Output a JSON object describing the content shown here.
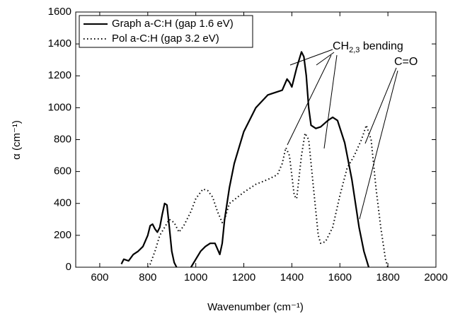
{
  "chart_data": {
    "type": "line",
    "xlabel": "Wavenumber (cm⁻¹)",
    "ylabel": "α (cm⁻¹)",
    "xlim": [
      500,
      2000
    ],
    "xticks": [
      600,
      800,
      1000,
      1200,
      1400,
      1600,
      1800,
      2000
    ],
    "ylim": [
      0,
      1600
    ],
    "yticks": [
      0,
      200,
      400,
      600,
      800,
      1000,
      1200,
      1400,
      1600
    ],
    "legend": "upper left",
    "annotations": [
      {
        "text": [
          "CH",
          "2,3",
          " bending"
        ]
      },
      {
        "text": [
          "C=O"
        ]
      }
    ],
    "series": [
      {
        "name": "Graph a-C:H (gap 1.6 eV)",
        "color": "#000000",
        "style": "solid",
        "x": [
          690,
          700,
          720,
          740,
          760,
          780,
          800,
          810,
          820,
          830,
          840,
          850,
          860,
          870,
          880,
          890,
          900,
          910,
          920,
          950,
          980,
          1000,
          1020,
          1040,
          1060,
          1080,
          1100,
          1110,
          1120,
          1140,
          1160,
          1180,
          1200,
          1250,
          1300,
          1340,
          1360,
          1380,
          1390,
          1400,
          1420,
          1440,
          1450,
          1460,
          1470,
          1480,
          1500,
          1520,
          1550,
          1570,
          1590,
          1620,
          1650,
          1680,
          1700,
          1720
        ],
        "values": [
          20,
          50,
          40,
          80,
          100,
          130,
          200,
          260,
          270,
          240,
          220,
          250,
          330,
          400,
          390,
          250,
          100,
          30,
          0,
          null,
          0,
          50,
          100,
          130,
          150,
          150,
          80,
          150,
          300,
          500,
          650,
          750,
          850,
          1000,
          1080,
          1100,
          1110,
          1180,
          1160,
          1130,
          1250,
          1350,
          1320,
          1200,
          1000,
          890,
          870,
          880,
          920,
          940,
          920,
          780,
          550,
          250,
          100,
          0
        ]
      },
      {
        "name": "Pol a-C:H (gap 3.2 eV)",
        "color": "#000000",
        "style": "dotted",
        "x": [
          800,
          810,
          830,
          850,
          870,
          890,
          910,
          930,
          950,
          980,
          1000,
          1030,
          1050,
          1070,
          1090,
          1110,
          1120,
          1140,
          1200,
          1250,
          1300,
          1340,
          1360,
          1375,
          1390,
          1410,
          1420,
          1440,
          1455,
          1470,
          1490,
          1510,
          1520,
          1540,
          1570,
          1600,
          1630,
          1660,
          1690,
          1710,
          1730,
          1750,
          1770,
          1790,
          1800
        ],
        "values": [
          0,
          20,
          100,
          200,
          250,
          300,
          280,
          220,
          260,
          350,
          430,
          490,
          480,
          440,
          350,
          280,
          300,
          400,
          470,
          520,
          550,
          580,
          650,
          750,
          700,
          450,
          430,
          700,
          840,
          800,
          500,
          200,
          150,
          160,
          250,
          450,
          620,
          700,
          800,
          890,
          800,
          500,
          250,
          50,
          0
        ]
      }
    ]
  }
}
